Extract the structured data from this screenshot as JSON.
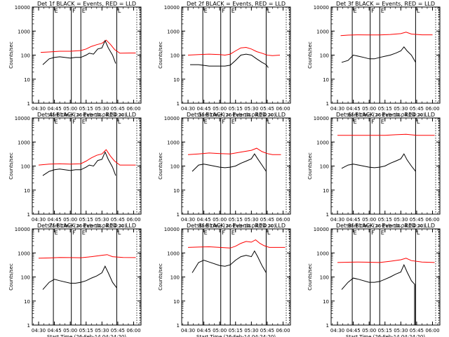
{
  "figure": {
    "background": "#ffffff"
  },
  "style": {
    "events_color": "#000000",
    "lld_color": "#ff0000",
    "axis_color": "#000000"
  },
  "chart_data": [
    {
      "type": "line",
      "title": "Det 1f BLACK = Events, RED = LLD",
      "xlabel": "Start Time (26-Feb-14 04:24:20)",
      "ylabel": "Counts/sec",
      "yscale": "log",
      "ylim": [
        1,
        10000
      ],
      "y_ticks": [
        "1",
        "10",
        "100",
        "1000",
        "10000"
      ],
      "x_ticks": [
        "04:30",
        "04:45",
        "05:00",
        "05:15",
        "05:30",
        "05:45",
        "06:00"
      ],
      "markers": [
        {
          "x": "04:44",
          "label": "E"
        },
        {
          "x": "05:01",
          "label": "F"
        },
        {
          "x": "05:10",
          "label": "E"
        },
        {
          "x": "05:44",
          "label": "L"
        }
      ],
      "grid": false,
      "series": [
        {
          "color": "#ff0000",
          "x": [
            "04:32",
            "04:40",
            "04:50",
            "05:00",
            "05:10",
            "05:15",
            "05:20",
            "05:25",
            "05:30",
            "05:34",
            "05:38",
            "05:42",
            "05:47",
            "05:56",
            "06:02"
          ],
          "values": [
            130,
            135,
            145,
            145,
            155,
            180,
            230,
            270,
            310,
            420,
            280,
            170,
            120,
            122,
            122
          ]
        },
        {
          "color": "#000000",
          "x": [
            "04:34",
            "04:40",
            "04:45",
            "04:50",
            "05:00",
            "05:05",
            "05:10",
            "05:15",
            "05:18",
            "05:22",
            "05:26",
            "05:30",
            "05:33",
            "05:36",
            "05:40",
            "05:43"
          ],
          "values": [
            40,
            70,
            80,
            85,
            75,
            80,
            80,
            100,
            120,
            110,
            180,
            200,
            400,
            200,
            100,
            45
          ]
        }
      ]
    },
    {
      "type": "line",
      "title": "Det 2f BLACK = Events, RED = LLD",
      "xlabel": "Start Time (26-Feb-14 04:24:20)",
      "ylabel": "Counts/sec",
      "yscale": "log",
      "ylim": [
        1,
        10000
      ],
      "y_ticks": [
        "1",
        "10",
        "100",
        "1000",
        "10000"
      ],
      "x_ticks": [
        "04:30",
        "04:45",
        "05:00",
        "05:15",
        "05:30",
        "05:45",
        "06:00"
      ],
      "markers": [
        {
          "x": "04:44",
          "label": "E"
        },
        {
          "x": "05:01",
          "label": "F"
        },
        {
          "x": "05:10",
          "label": "E"
        },
        {
          "x": "05:44",
          "label": "L"
        }
      ],
      "grid": false,
      "series": [
        {
          "color": "#ff0000",
          "x": [
            "04:30",
            "04:40",
            "04:50",
            "05:00",
            "05:05",
            "05:10",
            "05:15",
            "05:20",
            "05:25",
            "05:30",
            "05:35",
            "05:40",
            "05:45",
            "05:50",
            "05:57"
          ],
          "values": [
            100,
            105,
            110,
            105,
            100,
            110,
            150,
            200,
            210,
            180,
            140,
            120,
            100,
            95,
            100
          ]
        },
        {
          "color": "#000000",
          "x": [
            "04:32",
            "04:40",
            "04:50",
            "05:00",
            "05:05",
            "05:10",
            "05:15",
            "05:20",
            "05:25",
            "05:30",
            "05:35",
            "05:40",
            "05:44",
            "05:46"
          ],
          "values": [
            40,
            40,
            35,
            35,
            35,
            38,
            60,
            100,
            110,
            100,
            70,
            50,
            40,
            30
          ]
        }
      ]
    },
    {
      "type": "line",
      "title": "Det 3f BLACK = Events, RED = LLD",
      "xlabel": "Start Time (26-Feb-14 04:24:20)",
      "ylabel": "Counts/sec",
      "yscale": "log",
      "ylim": [
        1,
        10000
      ],
      "y_ticks": [
        "1",
        "10",
        "100",
        "1000",
        "10000"
      ],
      "x_ticks": [
        "04:30",
        "04:45",
        "05:00",
        "05:15",
        "05:30",
        "05:45",
        "06:00"
      ],
      "markers": [
        {
          "x": "04:44",
          "label": "E"
        },
        {
          "x": "05:01",
          "label": "F"
        },
        {
          "x": "05:10",
          "label": "E"
        },
        {
          "x": "05:44",
          "label": "L"
        }
      ],
      "grid": false,
      "series": [
        {
          "color": "#ff0000",
          "x": [
            "04:33",
            "04:40",
            "04:50",
            "05:00",
            "05:10",
            "05:20",
            "05:30",
            "05:35",
            "05:40",
            "05:50",
            "06:00"
          ],
          "values": [
            650,
            680,
            700,
            690,
            690,
            720,
            780,
            900,
            750,
            700,
            700
          ]
        },
        {
          "color": "#000000",
          "x": [
            "04:34",
            "04:40",
            "04:45",
            "04:50",
            "04:55",
            "05:00",
            "05:05",
            "05:10",
            "05:15",
            "05:20",
            "05:25",
            "05:30",
            "05:33",
            "05:36",
            "05:40",
            "05:44"
          ],
          "values": [
            50,
            60,
            100,
            90,
            80,
            70,
            70,
            80,
            90,
            100,
            120,
            150,
            220,
            150,
            100,
            50
          ]
        }
      ]
    },
    {
      "type": "line",
      "title": "Det 4f BLACK = Events, RED = LLD",
      "xlabel": "Start Time (26-Feb-14 04:24:20)",
      "ylabel": "Counts/sec",
      "yscale": "log",
      "ylim": [
        1,
        10000
      ],
      "y_ticks": [
        "1",
        "10",
        "100",
        "1000",
        "10000"
      ],
      "x_ticks": [
        "04:30",
        "04:45",
        "05:00",
        "05:15",
        "05:30",
        "05:45",
        "06:00"
      ],
      "markers": [
        {
          "x": "04:44",
          "label": "E"
        },
        {
          "x": "05:01",
          "label": "F"
        },
        {
          "x": "05:10",
          "label": "E"
        },
        {
          "x": "05:44",
          "label": "L"
        }
      ],
      "grid": false,
      "series": [
        {
          "color": "#ff0000",
          "x": [
            "04:30",
            "04:40",
            "04:50",
            "05:00",
            "05:10",
            "05:15",
            "05:20",
            "05:25",
            "05:30",
            "05:34",
            "05:38",
            "05:42",
            "05:47",
            "05:55",
            "06:02"
          ],
          "values": [
            110,
            120,
            125,
            120,
            125,
            160,
            220,
            280,
            320,
            480,
            260,
            160,
            110,
            110,
            110
          ]
        },
        {
          "color": "#000000",
          "x": [
            "04:34",
            "04:40",
            "04:45",
            "04:50",
            "05:00",
            "05:05",
            "05:10",
            "05:15",
            "05:18",
            "05:22",
            "05:26",
            "05:30",
            "05:33",
            "05:36",
            "05:40",
            "05:43"
          ],
          "values": [
            40,
            60,
            70,
            75,
            65,
            70,
            70,
            90,
            110,
            100,
            170,
            190,
            380,
            190,
            90,
            40
          ]
        }
      ]
    },
    {
      "type": "line",
      "title": "Det 5f BLACK = Events, RED = LLD",
      "xlabel": "Start Time (26-Feb-14 04:24:20)",
      "ylabel": "Counts/sec",
      "yscale": "log",
      "ylim": [
        1,
        10000
      ],
      "y_ticks": [
        "1",
        "10",
        "100",
        "1000",
        "10000"
      ],
      "x_ticks": [
        "04:30",
        "04:45",
        "05:00",
        "05:15",
        "05:30",
        "05:45",
        "06:00"
      ],
      "markers": [
        {
          "x": "04:44",
          "label": "E"
        },
        {
          "x": "05:01",
          "label": "F"
        },
        {
          "x": "05:10",
          "label": "E"
        },
        {
          "x": "05:44",
          "label": "L"
        }
      ],
      "grid": false,
      "series": [
        {
          "color": "#ff0000",
          "x": [
            "04:30",
            "04:40",
            "04:50",
            "05:00",
            "05:10",
            "05:20",
            "05:30",
            "05:35",
            "05:40",
            "05:45",
            "05:50",
            "05:58"
          ],
          "values": [
            300,
            320,
            350,
            330,
            320,
            380,
            450,
            550,
            400,
            330,
            300,
            300
          ]
        },
        {
          "color": "#000000",
          "x": [
            "04:34",
            "04:40",
            "04:45",
            "04:50",
            "05:00",
            "05:05",
            "05:10",
            "05:15",
            "05:20",
            "05:25",
            "05:30",
            "05:33",
            "05:36",
            "05:40",
            "05:44"
          ],
          "values": [
            60,
            110,
            120,
            110,
            90,
            85,
            90,
            100,
            130,
            160,
            200,
            320,
            200,
            110,
            60
          ]
        }
      ]
    },
    {
      "type": "line",
      "title": "Det 6f BLACK = Events, RED = LLD",
      "xlabel": "Start Time (26-Feb-14 04:24:20)",
      "ylabel": "Counts/sec",
      "yscale": "log",
      "ylim": [
        1,
        10000
      ],
      "y_ticks": [
        "1",
        "10",
        "100",
        "1000",
        "10000"
      ],
      "x_ticks": [
        "04:30",
        "04:45",
        "05:00",
        "05:15",
        "05:30",
        "05:45",
        "06:00"
      ],
      "markers": [
        {
          "x": "04:44",
          "label": "E"
        },
        {
          "x": "05:01",
          "label": "F"
        },
        {
          "x": "05:10",
          "label": "E"
        },
        {
          "x": "05:44",
          "label": "L"
        }
      ],
      "grid": false,
      "series": [
        {
          "color": "#ff0000",
          "x": [
            "04:30",
            "04:45",
            "05:00",
            "05:15",
            "05:25",
            "05:35",
            "05:45",
            "06:02"
          ],
          "values": [
            1900,
            1900,
            1900,
            1900,
            2000,
            2100,
            1900,
            1900
          ]
        },
        {
          "color": "#000000",
          "x": [
            "04:34",
            "04:40",
            "04:45",
            "04:50",
            "05:00",
            "05:05",
            "05:10",
            "05:15",
            "05:20",
            "05:25",
            "05:30",
            "05:33",
            "05:36",
            "05:40",
            "05:44"
          ],
          "values": [
            80,
            110,
            120,
            110,
            90,
            85,
            90,
            100,
            130,
            160,
            200,
            320,
            180,
            100,
            60
          ]
        }
      ]
    },
    {
      "type": "line",
      "title": "Det 7f BLACK = Events, RED = LLD",
      "xlabel": "Start Time (26-Feb-14 04:24:20)",
      "ylabel": "Counts/sec",
      "yscale": "log",
      "ylim": [
        1,
        10000
      ],
      "y_ticks": [
        "1",
        "10",
        "100",
        "1000",
        "10000"
      ],
      "x_ticks": [
        "04:30",
        "04:45",
        "05:00",
        "05:15",
        "05:30",
        "05:45",
        "06:00"
      ],
      "markers": [
        {
          "x": "04:44",
          "label": "E"
        },
        {
          "x": "05:01",
          "label": "F"
        },
        {
          "x": "05:10",
          "label": "E"
        },
        {
          "x": "05:44",
          "label": "L"
        }
      ],
      "grid": false,
      "series": [
        {
          "color": "#ff0000",
          "x": [
            "04:30",
            "04:40",
            "04:50",
            "05:00",
            "05:10",
            "05:20",
            "05:30",
            "05:35",
            "05:40",
            "05:50",
            "06:02"
          ],
          "values": [
            600,
            620,
            650,
            640,
            630,
            700,
            800,
            850,
            700,
            650,
            640
          ]
        },
        {
          "color": "#000000",
          "x": [
            "04:34",
            "04:40",
            "04:45",
            "04:50",
            "05:00",
            "05:05",
            "05:10",
            "05:15",
            "05:20",
            "05:25",
            "05:30",
            "05:33",
            "05:36",
            "05:40",
            "05:44"
          ],
          "values": [
            30,
            60,
            80,
            70,
            55,
            55,
            60,
            70,
            90,
            110,
            150,
            280,
            150,
            60,
            35
          ]
        }
      ]
    },
    {
      "type": "line",
      "title": "Det 8f BLACK = Events, RED = LLD",
      "xlabel": "Start Time (26-Feb-14 04:24:20)",
      "ylabel": "Counts/sec",
      "yscale": "log",
      "ylim": [
        1,
        10000
      ],
      "y_ticks": [
        "1",
        "10",
        "100",
        "1000",
        "10000"
      ],
      "x_ticks": [
        "04:30",
        "04:45",
        "05:00",
        "05:15",
        "05:30",
        "05:45",
        "06:00"
      ],
      "markers": [
        {
          "x": "04:44",
          "label": "E"
        },
        {
          "x": "05:01",
          "label": "F"
        },
        {
          "x": "05:10",
          "label": "E"
        },
        {
          "x": "05:44",
          "label": "L"
        }
      ],
      "grid": false,
      "series": [
        {
          "color": "#ff0000",
          "x": [
            "04:30",
            "04:40",
            "04:50",
            "05:00",
            "05:10",
            "05:15",
            "05:20",
            "05:25",
            "05:30",
            "05:34",
            "05:38",
            "05:42",
            "05:47",
            "05:56",
            "06:02"
          ],
          "values": [
            1700,
            1750,
            1800,
            1700,
            1600,
            1900,
            2500,
            3000,
            2800,
            3500,
            2500,
            2000,
            1700,
            1700,
            1700
          ]
        },
        {
          "color": "#000000",
          "x": [
            "04:34",
            "04:40",
            "04:45",
            "04:50",
            "05:00",
            "05:05",
            "05:10",
            "05:15",
            "05:20",
            "05:25",
            "05:30",
            "05:33",
            "05:36",
            "05:40",
            "05:44"
          ],
          "values": [
            150,
            400,
            500,
            420,
            300,
            280,
            320,
            500,
            700,
            800,
            700,
            1200,
            700,
            300,
            150
          ]
        }
      ]
    },
    {
      "type": "line",
      "title": "Det 9f BLACK = Events, RED = LLD",
      "xlabel": "Start Time (26-Feb-14 04:24:20)",
      "ylabel": "Counts/sec",
      "yscale": "log",
      "ylim": [
        1,
        10000
      ],
      "y_ticks": [
        "1",
        "10",
        "100",
        "1000",
        "10000"
      ],
      "x_ticks": [
        "04:30",
        "04:45",
        "05:00",
        "05:15",
        "05:30",
        "05:45",
        "06:00"
      ],
      "markers": [
        {
          "x": "04:44",
          "label": "E"
        },
        {
          "x": "05:01",
          "label": "F"
        },
        {
          "x": "05:10",
          "label": "E"
        },
        {
          "x": "05:44",
          "label": "L"
        }
      ],
      "grid": false,
      "series": [
        {
          "color": "#ff0000",
          "x": [
            "04:30",
            "04:40",
            "04:50",
            "05:00",
            "05:10",
            "05:20",
            "05:30",
            "05:35",
            "05:40",
            "05:50",
            "06:02"
          ],
          "values": [
            400,
            410,
            420,
            410,
            400,
            450,
            520,
            600,
            480,
            420,
            400
          ]
        },
        {
          "color": "#000000",
          "x": [
            "04:34",
            "04:40",
            "04:45",
            "04:50",
            "05:00",
            "05:05",
            "05:10",
            "05:15",
            "05:20",
            "05:25",
            "05:30",
            "05:33",
            "05:36",
            "05:40",
            "05:43",
            "05:43",
            "05:44",
            "05:44"
          ],
          "values": [
            30,
            60,
            90,
            80,
            60,
            60,
            65,
            80,
            100,
            130,
            160,
            320,
            160,
            70,
            50,
            1,
            1,
            50
          ]
        }
      ]
    }
  ]
}
